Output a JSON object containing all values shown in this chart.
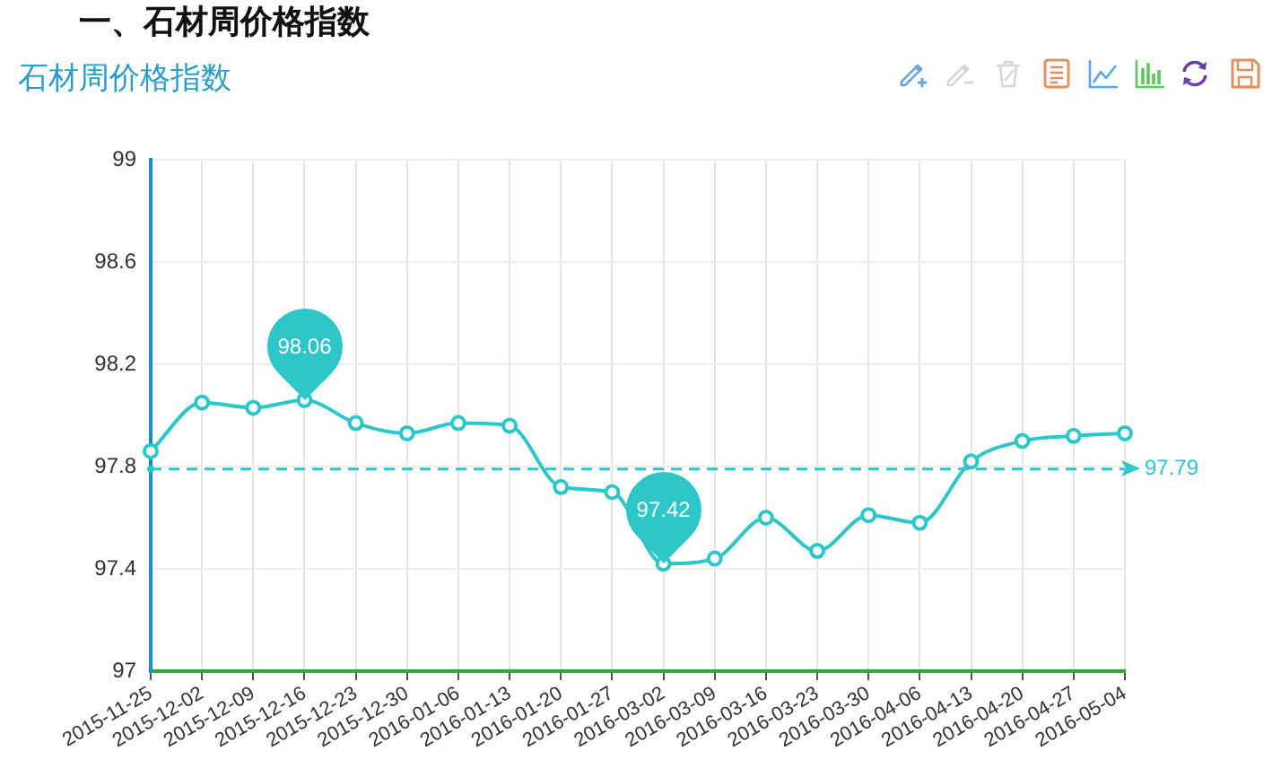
{
  "chart_data": {
    "type": "line",
    "title": "一、石材周价格指数",
    "subtitle": "石材周价格指数",
    "categories": [
      "2015-11-25",
      "2015-12-02",
      "2015-12-09",
      "2015-12-16",
      "2015-12-23",
      "2015-12-30",
      "2016-01-06",
      "2016-01-13",
      "2016-01-20",
      "2016-01-27",
      "2016-03-02",
      "2016-03-09",
      "2016-03-16",
      "2016-03-23",
      "2016-03-30",
      "2016-04-06",
      "2016-04-13",
      "2016-04-20",
      "2016-04-27",
      "2016-05-04"
    ],
    "values": [
      97.86,
      98.05,
      98.03,
      98.06,
      97.97,
      97.93,
      97.97,
      97.96,
      97.72,
      97.7,
      97.42,
      97.44,
      97.6,
      97.47,
      97.61,
      97.58,
      97.82,
      97.9,
      97.92,
      97.93
    ],
    "color": "#2ec7c9",
    "marker": "circle",
    "line_style": "solid",
    "ylim": [
      97,
      99
    ],
    "yticks": [
      97,
      97.4,
      97.8,
      98.2,
      98.6,
      99
    ],
    "grid": true,
    "ref_lines": [
      {
        "axis": "y",
        "value": 97.79,
        "label": "97.79",
        "color": "#2ec7c9",
        "line_style": "dashed"
      }
    ],
    "annotations": [
      {
        "text": "98.06",
        "x": "2015-12-16",
        "y": 98.06
      },
      {
        "text": "97.42",
        "x": "2016-03-02",
        "y": 97.42
      }
    ]
  }
}
